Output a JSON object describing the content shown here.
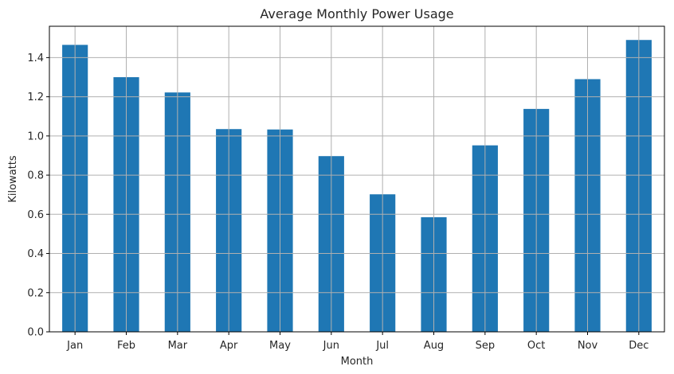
{
  "chart_data": {
    "type": "bar",
    "title": "Average Monthly Power Usage",
    "xlabel": "Month",
    "ylabel": "Kilowatts",
    "categories": [
      "Jan",
      "Feb",
      "Mar",
      "Apr",
      "May",
      "Jun",
      "Jul",
      "Aug",
      "Sep",
      "Oct",
      "Nov",
      "Dec"
    ],
    "values": [
      1.465,
      1.3,
      1.222,
      1.035,
      1.033,
      0.897,
      0.702,
      0.585,
      0.952,
      1.138,
      1.29,
      1.49
    ],
    "ylim": [
      0,
      1.56
    ],
    "yticks": [
      "0.0",
      "0.2",
      "0.4",
      "0.6",
      "0.8",
      "1.0",
      "1.2",
      "1.4"
    ],
    "grid": true,
    "legend": "none",
    "bar_color": "#1f77b4",
    "grid_color": "#b0b0b0"
  }
}
